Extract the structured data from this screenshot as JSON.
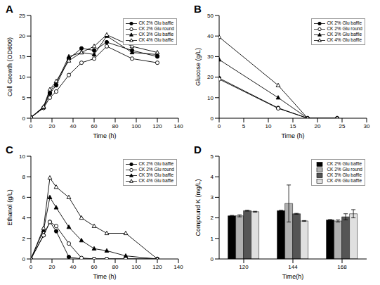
{
  "chart_data": [
    {
      "type": "line",
      "title": "A",
      "x_label": "Time (h)",
      "y_label": "Cell Growth (OD600)",
      "x": [
        0,
        12,
        18,
        24,
        36,
        48,
        60,
        72,
        96,
        120
      ],
      "xlim": [
        0,
        140
      ],
      "xticks": [
        0,
        20,
        40,
        60,
        80,
        100,
        120,
        140
      ],
      "ylim": [
        0,
        25
      ],
      "yticks": [
        0,
        5,
        10,
        15,
        20,
        25
      ],
      "grid": false,
      "legend": "upper right",
      "series": [
        {
          "name": "CK 2% Glu baffle",
          "color": "#000000",
          "marker": "circle",
          "values": [
            0.2,
            2.5,
            6,
            8,
            14.5,
            17,
            16.5,
            18.5,
            16.5,
            15
          ]
        },
        {
          "name": "CK 2% Glu round",
          "color": "#000000",
          "marker": "circle_open",
          "values": [
            0.2,
            2.5,
            5,
            6.5,
            10.5,
            13.5,
            14.5,
            17.5,
            14.5,
            13.5
          ]
        },
        {
          "name": "CK 3% Glu baffle",
          "color": "#000000",
          "marker": "triangle",
          "values": [
            0.2,
            2.7,
            6.5,
            8.5,
            15,
            16,
            15.5,
            20,
            16,
            15.5
          ]
        },
        {
          "name": "CK 4% Glu baffle",
          "color": "#000000",
          "marker": "triangle_open",
          "values": [
            0.2,
            2.8,
            7,
            9,
            14,
            16,
            17.5,
            20.3,
            17.5,
            16
          ]
        }
      ]
    },
    {
      "type": "line",
      "title": "B",
      "x_label": "Time (h)",
      "y_label": "Glucose (g/L)",
      "x": [
        0,
        12,
        18,
        24
      ],
      "xlim": [
        0,
        30
      ],
      "xticks": [
        0,
        5,
        10,
        15,
        20,
        25,
        30
      ],
      "ylim": [
        0,
        50
      ],
      "yticks": [
        0,
        10,
        20,
        30,
        40,
        50
      ],
      "grid": false,
      "legend": "upper right",
      "series": [
        {
          "name": "CK 2% Glu baffle",
          "color": "#000000",
          "marker": "circle",
          "values": [
            19.5,
            5,
            0,
            0
          ]
        },
        {
          "name": "CK 2% Glu round",
          "color": "#000000",
          "marker": "circle_open",
          "values": [
            19,
            4.8,
            0,
            0
          ]
        },
        {
          "name": "CK 3% Glu baffle",
          "color": "#000000",
          "marker": "triangle",
          "values": [
            28.5,
            10,
            0,
            0
          ]
        },
        {
          "name": "CK 4% Glu baffle",
          "color": "#000000",
          "marker": "triangle_open",
          "values": [
            39.5,
            16,
            0,
            0
          ]
        }
      ]
    },
    {
      "type": "line",
      "title": "C",
      "x_label": "Time (h)",
      "y_label": "Ethanol (g/L)",
      "x": [
        0,
        12,
        18,
        24,
        36,
        48,
        60,
        72,
        90,
        120
      ],
      "xlim": [
        0,
        140
      ],
      "xticks": [
        0,
        20,
        40,
        60,
        80,
        100,
        120,
        140
      ],
      "ylim": [
        0,
        10
      ],
      "yticks": [
        0,
        2,
        4,
        6,
        8,
        10
      ],
      "grid": false,
      "legend": "upper right",
      "series": [
        {
          "name": "CK 2% Glu baffle",
          "color": "#000000",
          "marker": "circle",
          "values": [
            0,
            2.3,
            3.6,
            2.7,
            0.2,
            0,
            0,
            0,
            0,
            0
          ]
        },
        {
          "name": "CK 2% Glu round",
          "color": "#000000",
          "marker": "circle_open",
          "values": [
            0,
            2.3,
            3.6,
            3.2,
            1.5,
            0.1,
            0,
            0,
            0,
            0
          ]
        },
        {
          "name": "CK 3% Glu baffle",
          "color": "#000000",
          "marker": "triangle",
          "values": [
            0,
            2.8,
            6.0,
            5.0,
            3.1,
            1.8,
            1.0,
            0.8,
            0.3,
            0
          ]
        },
        {
          "name": "CK 4% Glu baffle",
          "color": "#000000",
          "marker": "triangle_open",
          "values": [
            0,
            3.0,
            7.9,
            7.0,
            6.0,
            4.0,
            3.2,
            2.5,
            2.5,
            0
          ]
        }
      ]
    },
    {
      "type": "bar",
      "title": "D",
      "x_label": "Time(h)",
      "y_label": "Compound K (mg/L)",
      "categories": [
        "120",
        "144",
        "168"
      ],
      "ylim": [
        0,
        5
      ],
      "yticks": [
        0,
        1,
        2,
        3,
        4,
        5
      ],
      "grid": false,
      "legend": "upper right",
      "series": [
        {
          "name": "CK 2% Glu baffle",
          "color": "#000000",
          "values": [
            2.1,
            2.35,
            1.9
          ],
          "errors": [
            0.02,
            0.02,
            0.02
          ]
        },
        {
          "name": "CK 2% Glu round",
          "color": "#b0b0b0",
          "values": [
            2.1,
            2.7,
            1.85
          ],
          "errors": [
            0.05,
            0.9,
            0.05
          ]
        },
        {
          "name": "CK 3% Glu baffle",
          "color": "#555555",
          "values": [
            2.35,
            2.2,
            2.05
          ],
          "errors": [
            0.02,
            0.02,
            0.15
          ]
        },
        {
          "name": "CK 4% Glu baffle",
          "color": "#e0e0e0",
          "values": [
            2.3,
            1.85,
            2.2
          ],
          "errors": [
            0.02,
            0.02,
            0.2
          ]
        }
      ]
    }
  ]
}
